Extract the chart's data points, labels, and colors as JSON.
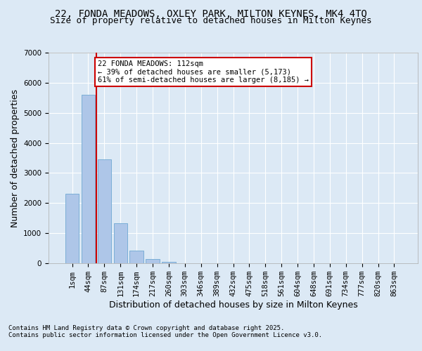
{
  "title_line1": "22, FONDA MEADOWS, OXLEY PARK, MILTON KEYNES, MK4 4TQ",
  "title_line2": "Size of property relative to detached houses in Milton Keynes",
  "xlabel": "Distribution of detached houses by size in Milton Keynes",
  "ylabel": "Number of detached properties",
  "categories": [
    "1sqm",
    "44sqm",
    "87sqm",
    "131sqm",
    "174sqm",
    "217sqm",
    "260sqm",
    "303sqm",
    "346sqm",
    "389sqm",
    "432sqm",
    "475sqm",
    "518sqm",
    "561sqm",
    "604sqm",
    "648sqm",
    "691sqm",
    "734sqm",
    "777sqm",
    "820sqm",
    "863sqm"
  ],
  "values": [
    2300,
    5600,
    3450,
    1320,
    420,
    130,
    50,
    0,
    0,
    0,
    0,
    0,
    0,
    0,
    0,
    0,
    0,
    0,
    0,
    0,
    0
  ],
  "bar_color": "#aec6e8",
  "bar_edge_color": "#7aaed6",
  "vline_color": "#cc0000",
  "annotation_text": "22 FONDA MEADOWS: 112sqm\n← 39% of detached houses are smaller (5,173)\n61% of semi-detached houses are larger (8,185) →",
  "annotation_box_color": "#ffffff",
  "annotation_box_edge": "#cc0000",
  "ylim": [
    0,
    7000
  ],
  "yticks": [
    0,
    1000,
    2000,
    3000,
    4000,
    5000,
    6000,
    7000
  ],
  "background_color": "#dce9f5",
  "plot_bg_color": "#dce9f5",
  "footer_line1": "Contains HM Land Registry data © Crown copyright and database right 2025.",
  "footer_line2": "Contains public sector information licensed under the Open Government Licence v3.0.",
  "title_fontsize": 10,
  "subtitle_fontsize": 9,
  "tick_fontsize": 7.5,
  "label_fontsize": 9
}
